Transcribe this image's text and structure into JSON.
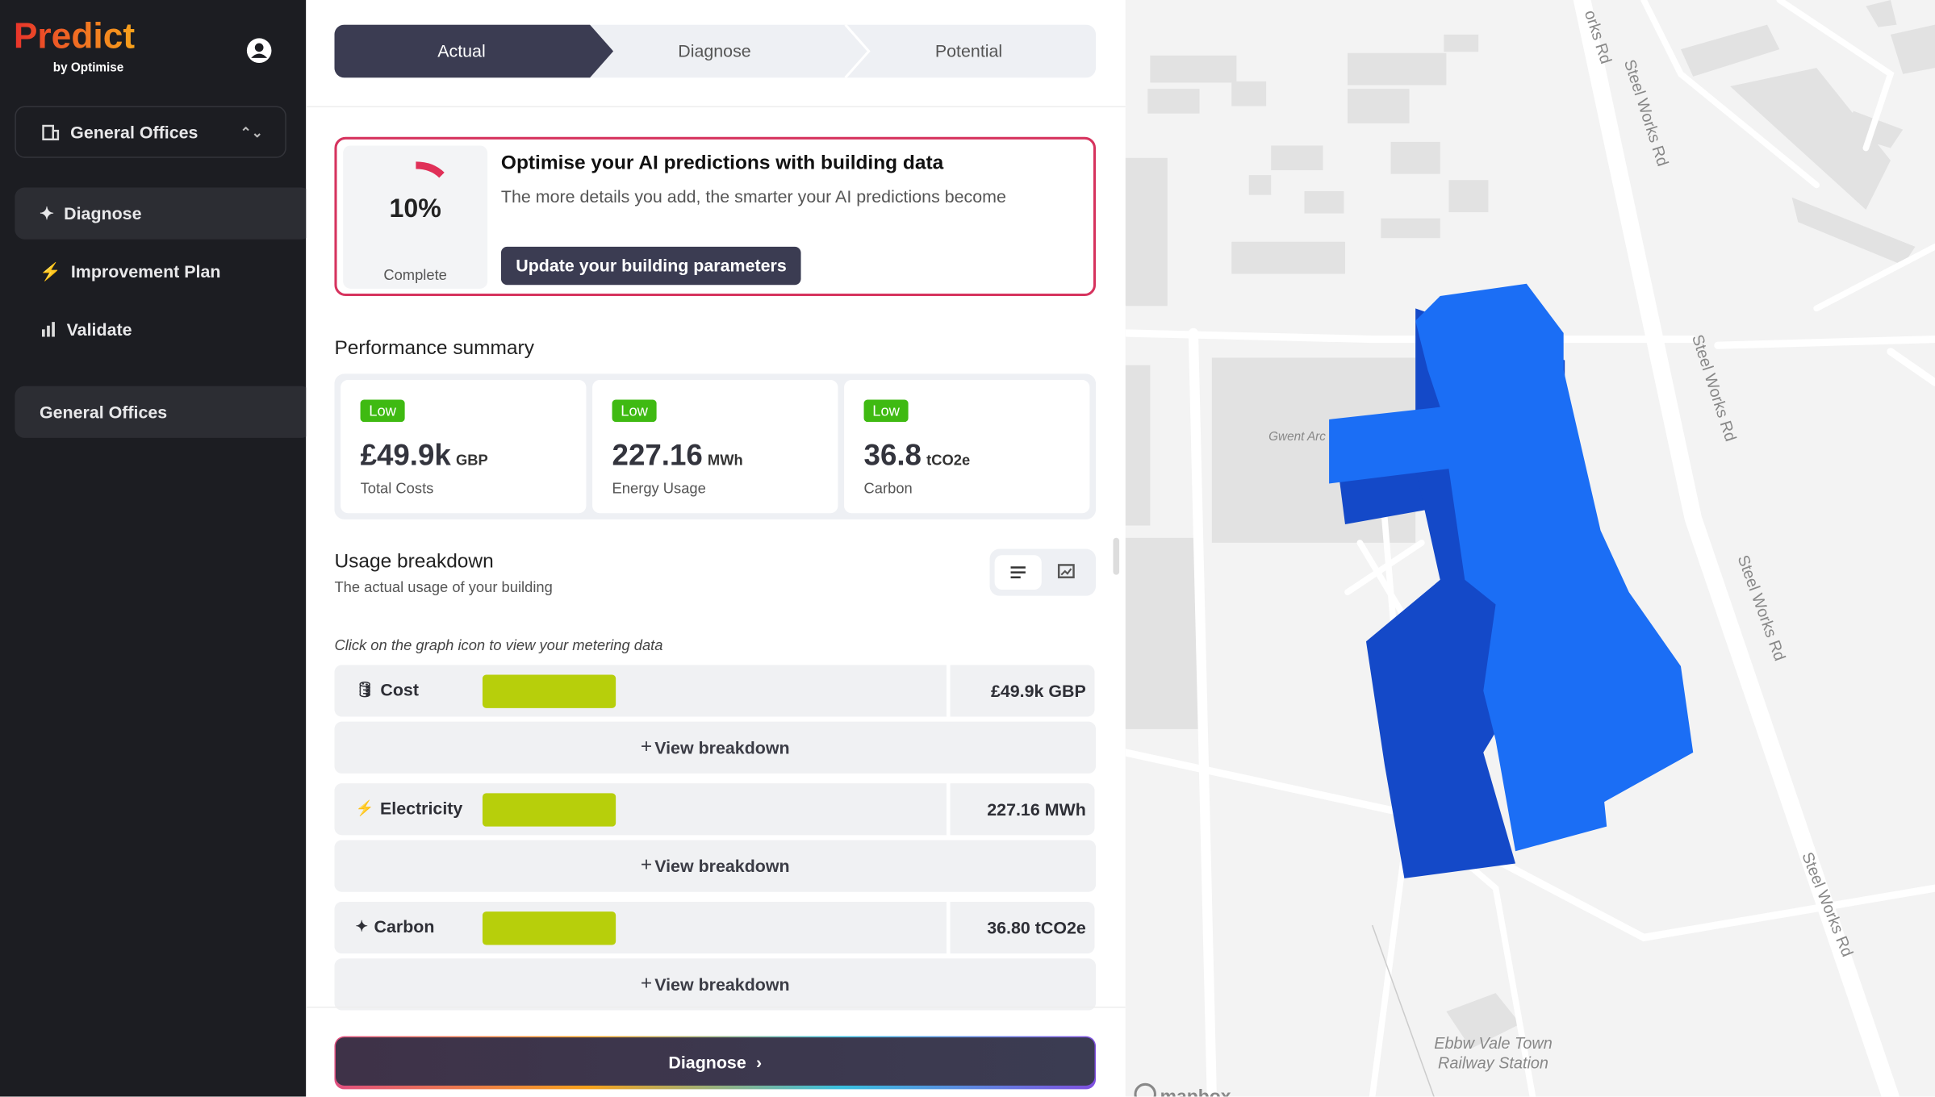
{
  "sidebar": {
    "brand": "Predict",
    "tagline": "by Optimise",
    "building_selector": "General Offices",
    "nav": [
      "Diagnose",
      "Improvement Plan",
      "Validate"
    ],
    "project": "General Offices"
  },
  "steps": [
    "Actual",
    "Diagnose",
    "Potential"
  ],
  "prompt": {
    "progress": "10%",
    "progress_label": "Complete",
    "title": "Optimise your AI predictions with building data",
    "subtitle": "The more details you add, the smarter your AI predictions become",
    "button": "Update your building parameters"
  },
  "performance": {
    "title": "Performance summary",
    "cards": [
      {
        "badge": "Low",
        "value": "£49.9k",
        "unit": "GBP",
        "label": "Total Costs"
      },
      {
        "badge": "Low",
        "value": "227.16",
        "unit": "MWh",
        "label": "Energy Usage"
      },
      {
        "badge": "Low",
        "value": "36.8",
        "unit": "tCO2e",
        "label": "Carbon"
      }
    ]
  },
  "usage": {
    "title": "Usage breakdown",
    "subtitle": "The actual usage of your building",
    "hint": "Click on the graph icon to view your metering data",
    "rows": [
      {
        "name": "Cost",
        "total": "£49.9k GBP",
        "action": "View breakdown"
      },
      {
        "name": "Electricity",
        "total": "227.16 MWh",
        "action": "View breakdown"
      },
      {
        "name": "Carbon",
        "total": "36.80 tCO2e",
        "action": "View breakdown"
      }
    ]
  },
  "footer_button": "Diagnose",
  "map": {
    "roads": [
      "orks Rd",
      "Steel Works Rd",
      "Steel Works Rd",
      "Steel Works Rd",
      "Steel Works Rd"
    ],
    "places": [
      "Gwent Arc",
      "Ebbw Vale Town",
      "Railway Station"
    ],
    "attribution": "mapbox"
  }
}
